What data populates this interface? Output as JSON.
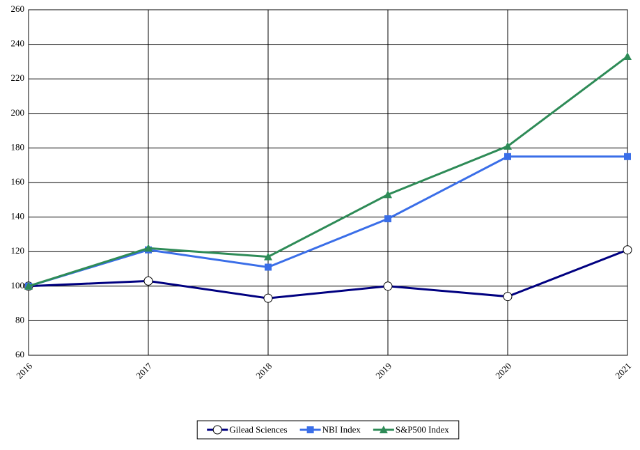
{
  "chart_data": {
    "type": "line",
    "categories": [
      "2016",
      "2017",
      "2018",
      "2019",
      "2020",
      "2021"
    ],
    "series": [
      {
        "name": "Gilead Sciences",
        "color": "#000080",
        "marker": "circle",
        "values": [
          100,
          103,
          93,
          100,
          94,
          121
        ]
      },
      {
        "name": "NBI Index",
        "color": "#3a6ee8",
        "marker": "square",
        "values": [
          100,
          121,
          111,
          139,
          175,
          175
        ]
      },
      {
        "name": "S&P500 Index",
        "color": "#2e8b57",
        "marker": "triangle",
        "values": [
          100,
          122,
          117,
          153,
          181,
          233
        ]
      }
    ],
    "ylim": [
      60,
      260
    ],
    "yticks": [
      60,
      80,
      100,
      120,
      140,
      160,
      180,
      200,
      220,
      240,
      260
    ],
    "grid": true,
    "legend": "bottom"
  }
}
